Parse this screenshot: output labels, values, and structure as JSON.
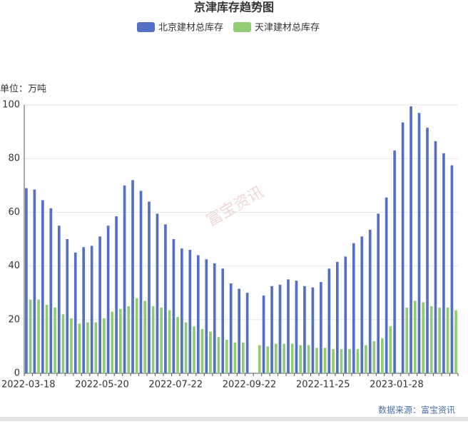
{
  "chart_data": {
    "type": "bar",
    "title": "京津库存趋势图",
    "y_unit": "单位：万吨",
    "watermark": "富宝资讯",
    "source": "数据来源：富宝资讯",
    "categories": [
      "2022-03-18",
      null,
      null,
      null,
      null,
      null,
      null,
      null,
      null,
      "2022-05-20",
      null,
      null,
      null,
      null,
      null,
      null,
      null,
      null,
      "2022-07-22",
      null,
      null,
      null,
      null,
      null,
      null,
      null,
      null,
      "2022-09-22",
      null,
      null,
      null,
      null,
      null,
      null,
      null,
      null,
      "2022-11-25",
      null,
      null,
      null,
      null,
      null,
      null,
      null,
      null,
      "2023-01-28",
      null,
      null,
      null,
      null,
      null,
      null,
      null
    ],
    "series": [
      {
        "name": "北京建材总库存",
        "color": "#5470c6",
        "values": [
          69,
          68.5,
          64.5,
          61.5,
          55,
          50,
          45,
          47,
          47.5,
          51,
          55,
          58.5,
          70,
          72,
          68,
          64,
          59.5,
          55.5,
          50,
          46.5,
          46,
          44,
          42.5,
          41,
          39,
          33.5,
          31.5,
          30,
          null,
          29,
          32.5,
          33,
          35,
          34.5,
          32.5,
          32,
          34,
          39,
          41.5,
          43.5,
          48.5,
          51,
          53.5,
          59.5,
          65.5,
          83,
          93.5,
          99.5,
          97,
          91.5,
          86.5,
          82,
          77.5
        ]
      },
      {
        "name": "天津建材总库存",
        "color": "#91cc75",
        "values": [
          27.5,
          27.5,
          25.5,
          24.5,
          22,
          20.5,
          18.5,
          19,
          19,
          20.5,
          23,
          24,
          25,
          28,
          27,
          25,
          24.5,
          23.5,
          21,
          19,
          17.5,
          16.5,
          15.5,
          13.5,
          12.5,
          11.5,
          11.5,
          null,
          10.5,
          10,
          11,
          11,
          11,
          10.5,
          10.5,
          9.5,
          9.5,
          9,
          9,
          9,
          9,
          10.5,
          12,
          13,
          17.5,
          null,
          24.5,
          27,
          26.5,
          25,
          24.5,
          24.5,
          23.5
        ]
      }
    ],
    "ylim": [
      0,
      100
    ],
    "yticks": [
      0,
      20,
      40,
      60,
      80,
      100
    ],
    "grid": true
  }
}
